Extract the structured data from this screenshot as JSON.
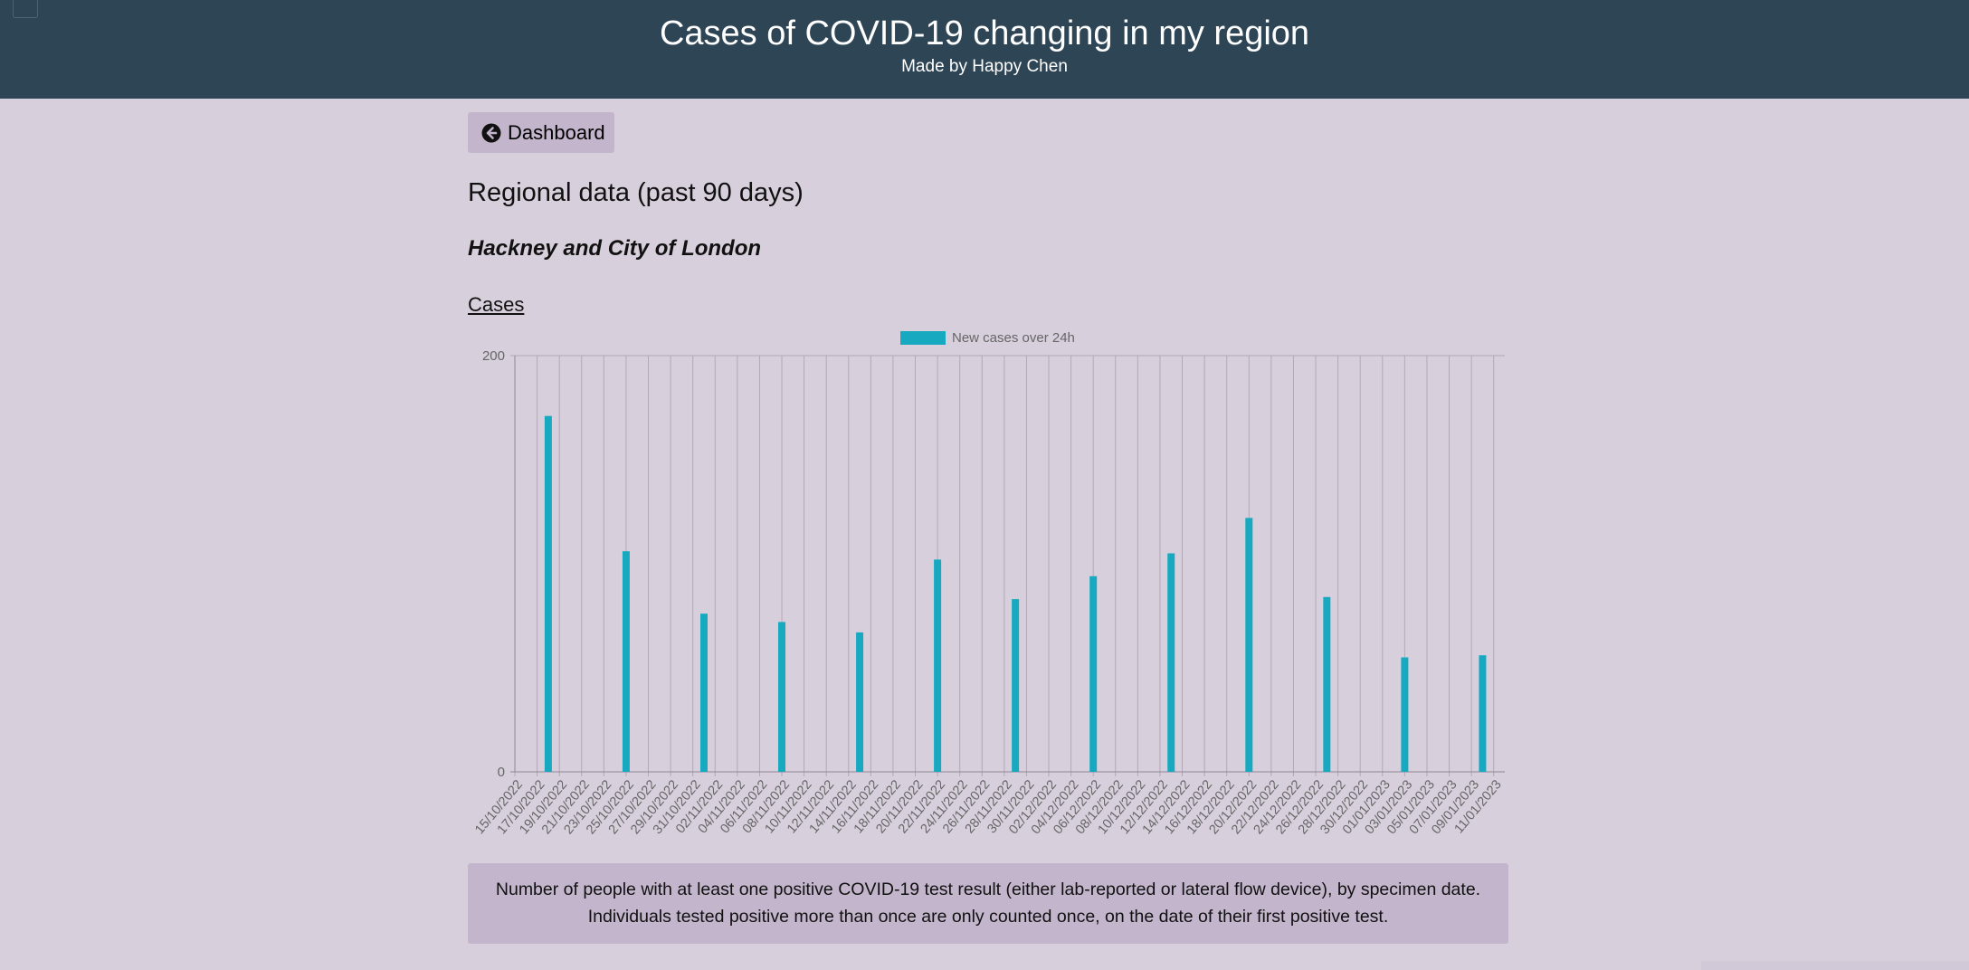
{
  "header": {
    "title": "Cases of COVID-19 changing in my region",
    "subtitle": "Made by Happy Chen"
  },
  "nav": {
    "back_label": "Dashboard",
    "back_icon": "arrow-circle-left-icon"
  },
  "page": {
    "heading": "Regional data (past 90 days)",
    "region": "Hackney and City of London",
    "cases_label": "Cases"
  },
  "colors": {
    "bar": "#17a9c0",
    "header_bg": "#2e4556",
    "page_bg": "#d8cfdd",
    "panel_bg": "#c3b6cc"
  },
  "chart_data": {
    "type": "bar",
    "legend": "New cases over 24h",
    "legend_position": "top-center",
    "grid": true,
    "ylim": [
      0,
      200
    ],
    "yticks": [
      0,
      200
    ],
    "x_start": "15/10/2022",
    "x_end": "12/01/2023",
    "xtick_labels": [
      "15/10/2022",
      "17/10/2022",
      "19/10/2022",
      "21/10/2022",
      "23/10/2022",
      "25/10/2022",
      "27/10/2022",
      "29/10/2022",
      "31/10/2022",
      "02/11/2022",
      "04/11/2022",
      "06/11/2022",
      "08/11/2022",
      "10/11/2022",
      "12/11/2022",
      "14/11/2022",
      "16/11/2022",
      "18/11/2022",
      "20/11/2022",
      "22/11/2022",
      "24/11/2022",
      "26/11/2022",
      "28/11/2022",
      "30/11/2022",
      "02/12/2022",
      "04/12/2022",
      "06/12/2022",
      "08/12/2022",
      "10/12/2022",
      "12/12/2022",
      "14/12/2022",
      "16/12/2022",
      "18/12/2022",
      "20/12/2022",
      "22/12/2022",
      "24/12/2022",
      "26/12/2022",
      "28/12/2022",
      "30/12/2022",
      "01/01/2023",
      "03/01/2023",
      "05/01/2023",
      "07/01/2023",
      "09/01/2023",
      "11/01/2023"
    ],
    "points": [
      {
        "date": "18/10/2022",
        "value": 171
      },
      {
        "date": "25/10/2022",
        "value": 106
      },
      {
        "date": "01/11/2022",
        "value": 76
      },
      {
        "date": "08/11/2022",
        "value": 72
      },
      {
        "date": "15/11/2022",
        "value": 67
      },
      {
        "date": "22/11/2022",
        "value": 102
      },
      {
        "date": "29/11/2022",
        "value": 83
      },
      {
        "date": "06/12/2022",
        "value": 94
      },
      {
        "date": "13/12/2022",
        "value": 105
      },
      {
        "date": "20/12/2022",
        "value": 122
      },
      {
        "date": "27/12/2022",
        "value": 84
      },
      {
        "date": "03/01/2023",
        "value": 55
      },
      {
        "date": "10/01/2023",
        "value": 56
      }
    ]
  },
  "note": {
    "line1": "Number of people with at least one positive COVID-19 test result (either lab-reported or lateral flow device), by specimen date.",
    "line2": "Individuals tested positive more than once are only counted once, on the date of their first positive test."
  }
}
